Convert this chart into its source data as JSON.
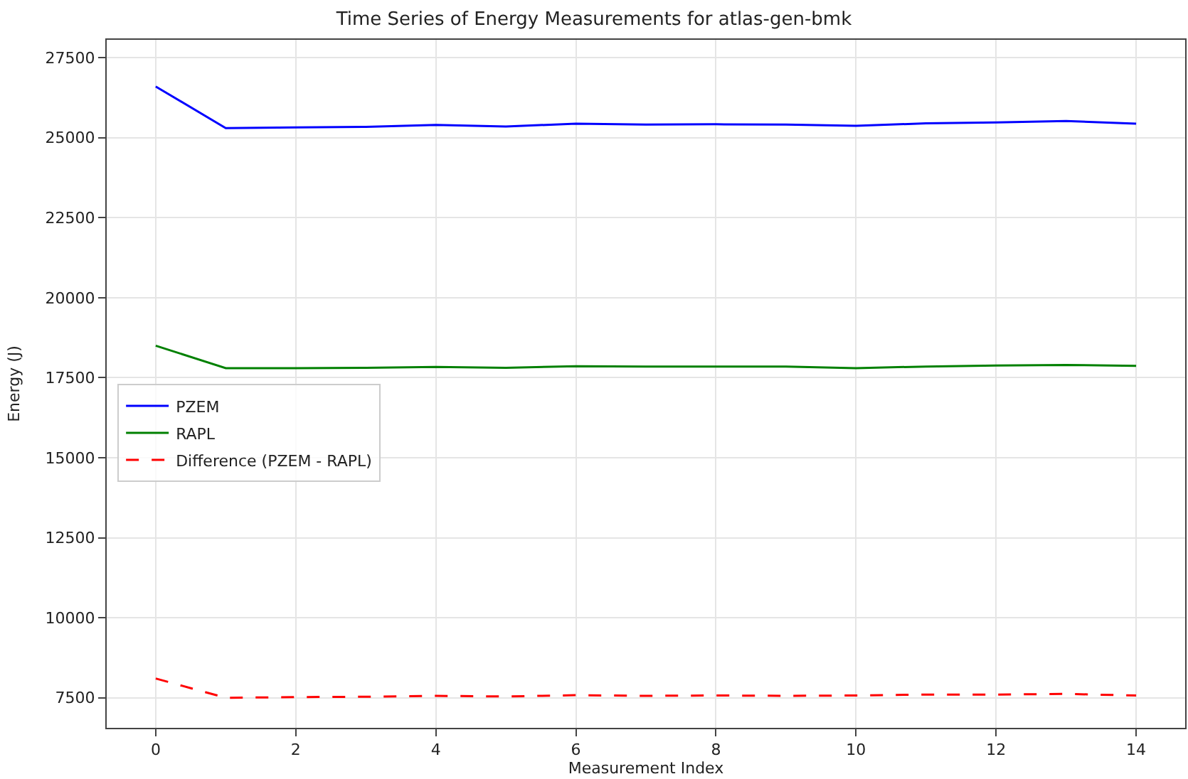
{
  "chart_data": {
    "type": "line",
    "title": "Time Series of Energy Measurements for atlas-gen-bmk",
    "xlabel": "Measurement Index",
    "ylabel": "Energy (J)",
    "x": [
      0,
      1,
      2,
      3,
      4,
      5,
      6,
      7,
      8,
      9,
      10,
      11,
      12,
      13,
      14
    ],
    "series": [
      {
        "name": "PZEM",
        "color": "#0000ff",
        "line_style": "solid",
        "values": [
          26600,
          25300,
          25320,
          25340,
          25400,
          25350,
          25440,
          25410,
          25420,
          25410,
          25370,
          25450,
          25480,
          25520,
          25440
        ]
      },
      {
        "name": "RAPL",
        "color": "#008000",
        "line_style": "solid",
        "values": [
          18500,
          17800,
          17800,
          17810,
          17840,
          17810,
          17860,
          17850,
          17850,
          17850,
          17800,
          17850,
          17880,
          17900,
          17870
        ]
      },
      {
        "name": "Difference (PZEM - RAPL)",
        "color": "#ff0000",
        "line_style": "dashed",
        "values": [
          8100,
          7500,
          7520,
          7530,
          7560,
          7540,
          7580,
          7560,
          7570,
          7560,
          7570,
          7600,
          7600,
          7620,
          7570
        ]
      }
    ],
    "xlim": [
      -0.7,
      14.7
    ],
    "xticks": [
      0,
      2,
      4,
      6,
      8,
      10,
      12,
      14
    ],
    "ylim": [
      6560,
      28060
    ],
    "yticks": [
      7500,
      10000,
      12500,
      15000,
      17500,
      20000,
      22500,
      25000,
      27500
    ],
    "grid": true,
    "legend": "center left",
    "marker": "none"
  }
}
